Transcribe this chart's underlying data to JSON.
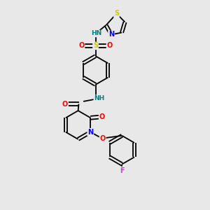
{
  "background_color": "#e8e8e8",
  "bond_color": "#000000",
  "atom_colors": {
    "N": "#0000ff",
    "O": "#ff0000",
    "S_thiazole": "#cccc00",
    "S_sulfonyl": "#cccc00",
    "F": "#cc44cc",
    "H": "#008080",
    "C": "#000000"
  },
  "figsize": [
    3.0,
    3.0
  ],
  "dpi": 100,
  "xlim": [
    0,
    10
  ],
  "ylim": [
    0,
    10
  ],
  "lw": 1.3,
  "fontsize": 6.5
}
